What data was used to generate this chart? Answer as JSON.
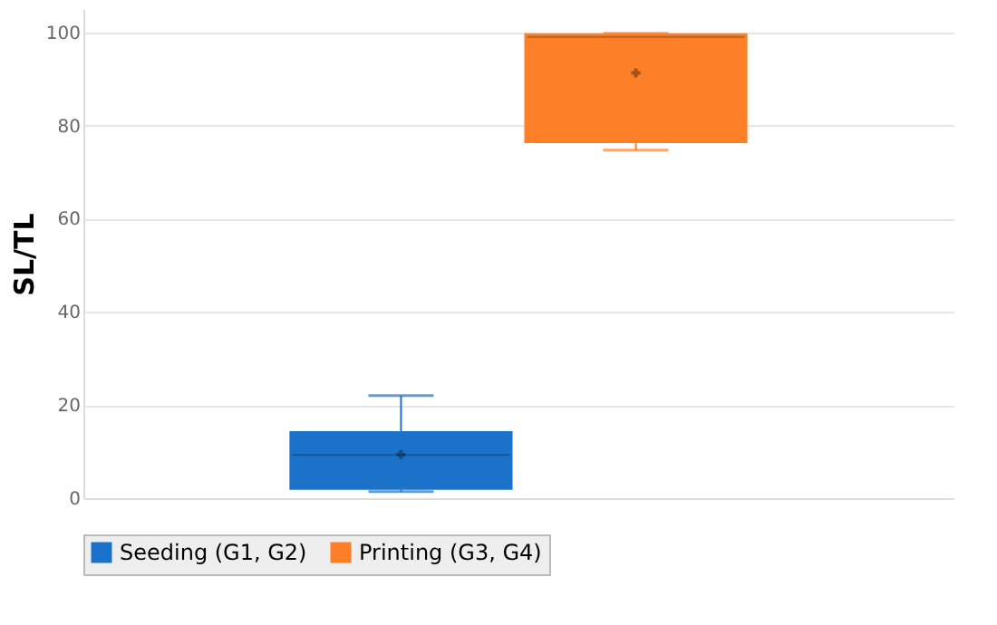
{
  "chart_data": {
    "type": "box",
    "ylabel": "SL/TL",
    "categories": [
      null
    ],
    "series": [
      {
        "name": "Seeding (G1, G2)",
        "color": "#1a73c9",
        "boxes": [
          {
            "low": 1.4,
            "q1": 1.8,
            "median": 9.3,
            "q3": 14.4,
            "high": 22,
            "mean": 9.4
          }
        ]
      },
      {
        "name": "Printing (G3, G4)",
        "color": "#fd7f27",
        "boxes": [
          {
            "low": 74.7,
            "q1": 76.2,
            "median": 99,
            "q3": 99.8,
            "high": 99.8,
            "mean": 91.3
          }
        ]
      }
    ],
    "ylim": [
      0,
      105
    ],
    "yticks": [
      0,
      20,
      40,
      60,
      80,
      100
    ],
    "grid": "y",
    "legend": "bottom",
    "marker": "cross"
  }
}
